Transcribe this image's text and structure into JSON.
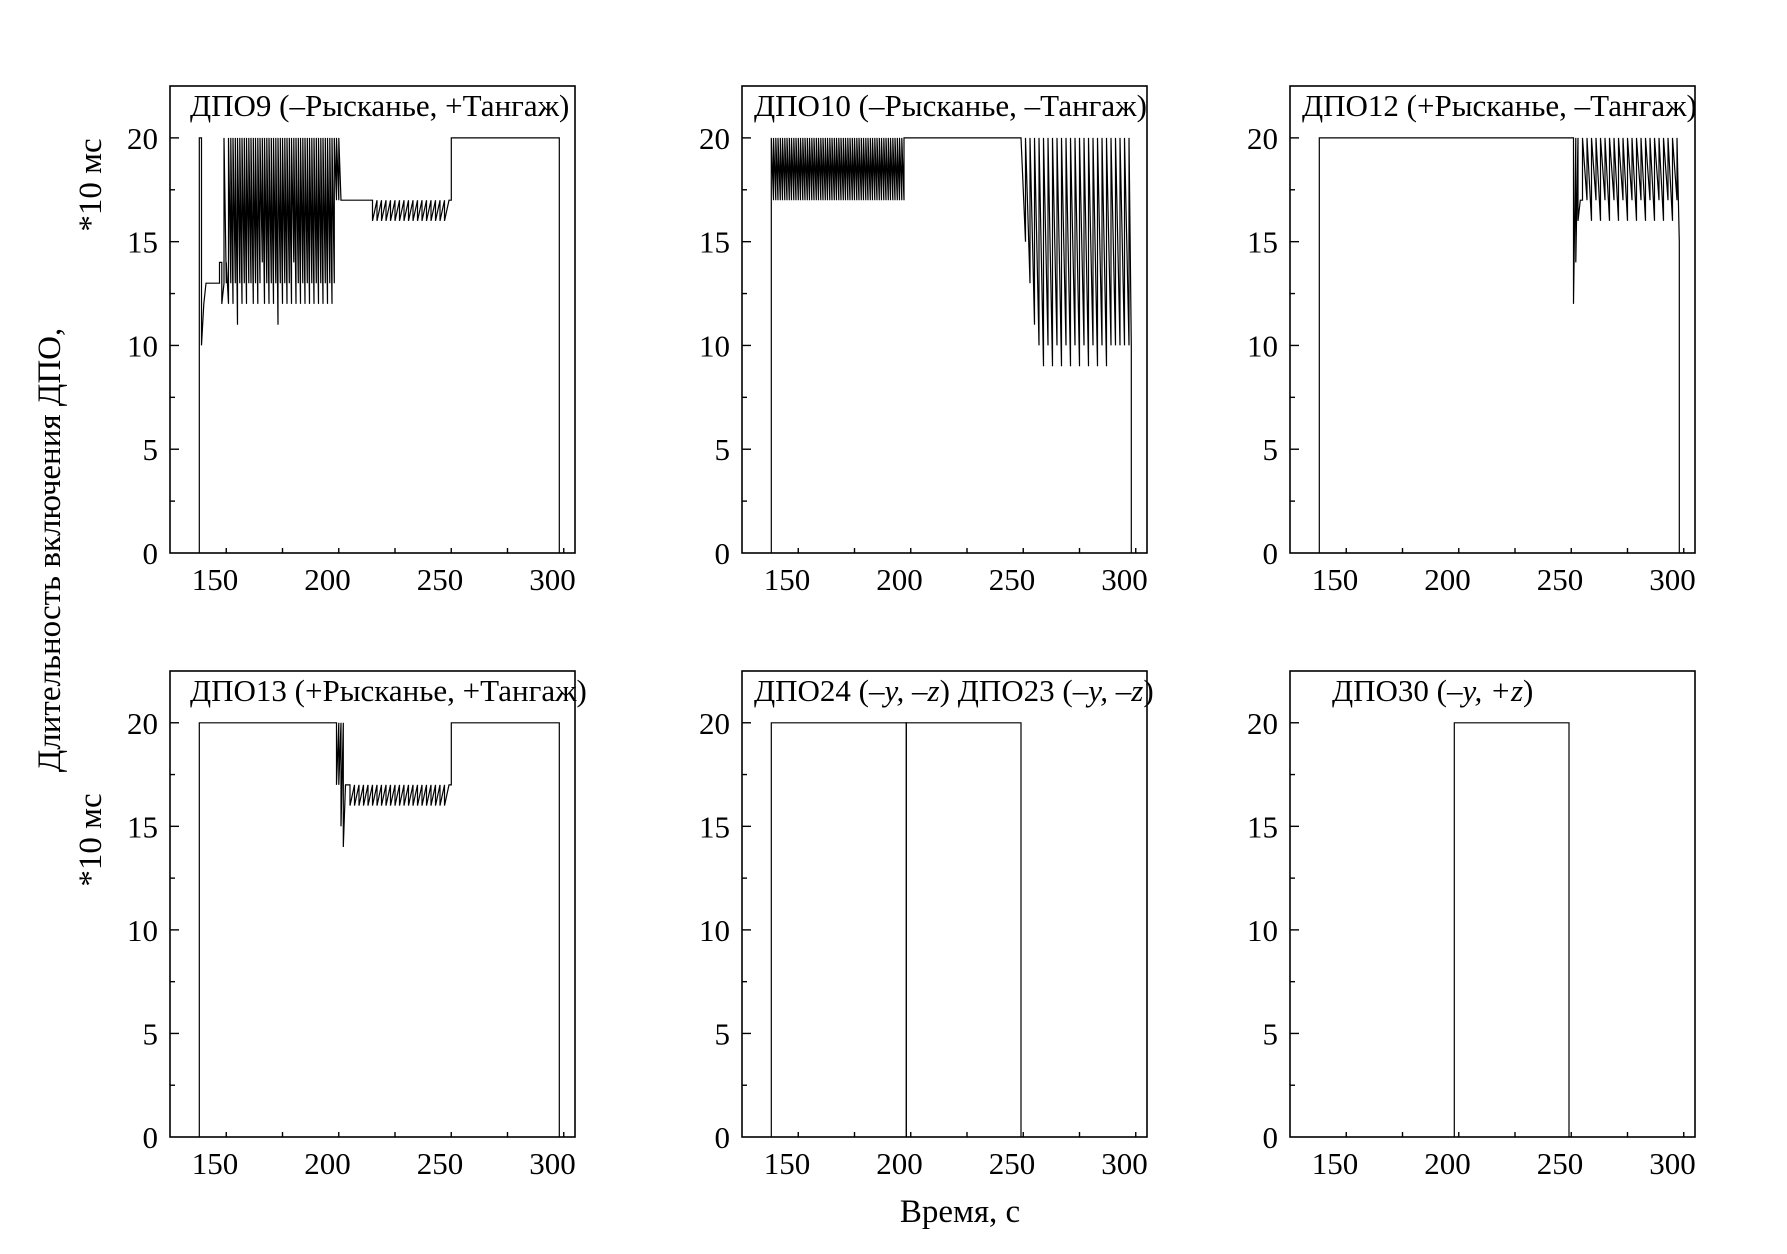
{
  "figure": {
    "ylabel_top": "Длительность включения ДПО,",
    "ylabel_bottom": "*10 мс",
    "xlabel": "Время, с"
  },
  "chart_data": [
    {
      "type": "line",
      "title": "ДПО9 (–Рысканье, +Тангаж)",
      "title_parts": [
        {
          "text": "ДПО9 (–Рысканье, +Тангаж)",
          "italic": false
        }
      ],
      "xlim": [
        130,
        310
      ],
      "ylim": [
        0,
        22.5
      ],
      "xticks": [
        150,
        200,
        250,
        300
      ],
      "yticks": [
        0,
        5,
        10,
        15,
        20
      ],
      "series": [
        {
          "x": [
            143,
            143,
            144,
            144,
            145,
            145,
            146,
            146,
            147,
            147,
            148,
            148,
            152,
            152,
            153,
            153,
            154,
            154,
            155,
            155,
            156,
            156,
            157,
            157,
            158,
            158,
            159,
            159,
            160,
            160,
            161,
            161,
            162,
            162,
            163,
            163,
            164,
            164,
            165,
            165,
            166,
            166,
            167,
            167,
            168,
            168,
            169,
            169,
            170,
            170,
            171,
            171,
            172,
            172,
            173,
            173,
            174,
            174,
            175,
            175,
            176,
            176,
            177,
            177,
            178,
            178,
            179,
            179,
            180,
            180,
            181,
            181,
            182,
            182,
            183,
            183,
            184,
            184,
            185,
            185,
            186,
            186,
            187,
            187,
            188,
            188,
            189,
            189,
            190,
            190,
            191,
            191,
            192,
            192,
            193,
            193,
            194,
            194,
            195,
            195,
            196,
            196,
            197,
            197,
            198,
            198,
            199,
            199,
            200,
            200,
            201,
            201,
            202,
            202,
            203,
            203,
            204,
            204,
            205,
            205,
            206,
            206,
            207,
            207,
            220,
            220,
            222,
            222,
            224,
            224,
            226,
            226,
            228,
            228,
            230,
            230,
            232,
            232,
            234,
            234,
            236,
            236,
            238,
            238,
            240,
            240,
            242,
            242,
            244,
            244,
            246,
            246,
            248,
            248,
            250,
            250,
            252,
            252,
            254,
            254,
            255,
            255,
            303,
            303
          ],
          "y": [
            0,
            20,
            20,
            10,
            12,
            12,
            13,
            13,
            13,
            13,
            13,
            13,
            13,
            14,
            14,
            12,
            13,
            20,
            13,
            14,
            12,
            20,
            13,
            20,
            12,
            20,
            13,
            20,
            11,
            20,
            13,
            20,
            12,
            20,
            13,
            20,
            12,
            20,
            13,
            20,
            13,
            20,
            12,
            20,
            13,
            20,
            12,
            20,
            13,
            20,
            14,
            20,
            12,
            20,
            13,
            20,
            12,
            20,
            13,
            20,
            12,
            20,
            13,
            20,
            11,
            20,
            13,
            20,
            12,
            20,
            13,
            20,
            12,
            20,
            13,
            20,
            12,
            20,
            14,
            20,
            12,
            20,
            13,
            20,
            12,
            20,
            13,
            20,
            12,
            20,
            13,
            20,
            12,
            20,
            13,
            20,
            12,
            20,
            13,
            20,
            12,
            20,
            13,
            20,
            12,
            20,
            13,
            20,
            12,
            20,
            13,
            20,
            12,
            20,
            13,
            20,
            17,
            20,
            17,
            20,
            17,
            17,
            17,
            17,
            17,
            16,
            17,
            16,
            17,
            16,
            17,
            16,
            17,
            16,
            17,
            16,
            17,
            16,
            17,
            16,
            17,
            16,
            17,
            16,
            17,
            16,
            17,
            16,
            17,
            16,
            17,
            16,
            17,
            16,
            17,
            16,
            17,
            16,
            17,
            17,
            17,
            20,
            20,
            0
          ]
        }
      ]
    },
    {
      "type": "line",
      "title": "ДПО10 (–Рысканье, –Тангаж)",
      "title_parts": [
        {
          "text": "ДПО10 (–Рысканье, –Тангаж)",
          "italic": false
        }
      ],
      "xlim": [
        130,
        310
      ],
      "ylim": [
        0,
        22.5
      ],
      "xticks": [
        150,
        200,
        250,
        300
      ],
      "yticks": [
        0,
        5,
        10,
        15,
        20
      ],
      "series": [
        {
          "x": [
            143,
            143,
            144,
            144,
            145,
            145,
            146,
            146,
            147,
            147,
            148,
            148,
            149,
            149,
            150,
            150,
            151,
            151,
            152,
            152,
            153,
            153,
            154,
            154,
            155,
            155,
            156,
            156,
            157,
            157,
            158,
            158,
            159,
            159,
            160,
            160,
            161,
            161,
            162,
            162,
            163,
            163,
            164,
            164,
            165,
            165,
            166,
            166,
            167,
            167,
            168,
            168,
            169,
            169,
            170,
            170,
            171,
            171,
            172,
            172,
            173,
            173,
            174,
            174,
            175,
            175,
            176,
            176,
            177,
            177,
            178,
            178,
            179,
            179,
            180,
            180,
            181,
            181,
            182,
            182,
            183,
            183,
            184,
            184,
            185,
            185,
            186,
            186,
            187,
            187,
            188,
            188,
            189,
            189,
            190,
            190,
            191,
            191,
            192,
            192,
            193,
            193,
            194,
            194,
            195,
            195,
            196,
            196,
            197,
            197,
            198,
            198,
            199,
            199,
            200,
            200,
            201,
            201,
            202,
            202,
            203,
            203,
            254,
            254,
            256,
            256,
            258,
            258,
            260,
            260,
            262,
            262,
            264,
            264,
            266,
            266,
            268,
            268,
            270,
            270,
            272,
            272,
            274,
            274,
            276,
            276,
            278,
            278,
            280,
            280,
            282,
            282,
            284,
            284,
            286,
            286,
            288,
            288,
            290,
            290,
            292,
            292,
            294,
            294,
            296,
            296,
            298,
            298,
            300,
            300,
            302,
            302,
            303,
            303
          ],
          "y": [
            0,
            20,
            17,
            20,
            17,
            20,
            17,
            20,
            17,
            20,
            17,
            20,
            17,
            20,
            17,
            20,
            17,
            20,
            17,
            20,
            17,
            20,
            17,
            20,
            17,
            20,
            17,
            20,
            17,
            20,
            17,
            20,
            17,
            20,
            17,
            20,
            17,
            20,
            17,
            20,
            17,
            20,
            17,
            20,
            17,
            20,
            17,
            20,
            17,
            20,
            17,
            20,
            17,
            20,
            17,
            20,
            17,
            20,
            17,
            20,
            17,
            20,
            17,
            20,
            17,
            20,
            17,
            20,
            17,
            20,
            17,
            20,
            17,
            20,
            17,
            20,
            17,
            20,
            17,
            20,
            17,
            20,
            17,
            20,
            17,
            20,
            17,
            20,
            17,
            20,
            17,
            20,
            17,
            20,
            17,
            20,
            17,
            20,
            17,
            20,
            17,
            20,
            17,
            20,
            17,
            20,
            17,
            20,
            17,
            20,
            17,
            20,
            17,
            20,
            17,
            20,
            17,
            20,
            17,
            20,
            20,
            20,
            20,
            20,
            15,
            20,
            13,
            20,
            11,
            20,
            10,
            20,
            9,
            20,
            10,
            20,
            9,
            20,
            10,
            20,
            9,
            20,
            10,
            20,
            9,
            20,
            10,
            20,
            9,
            20,
            10,
            20,
            9,
            20,
            10,
            20,
            9,
            20,
            10,
            20,
            9,
            20,
            10,
            20,
            10,
            20,
            10,
            20,
            10,
            20,
            10,
            20,
            10,
            0
          ]
        }
      ]
    },
    {
      "type": "line",
      "title": "ДПО12 (+Рысканье, –Тангаж)",
      "title_parts": [
        {
          "text": "ДПО12 (+Рысканье, –Тангаж)",
          "italic": false
        }
      ],
      "xlim": [
        130,
        310
      ],
      "ylim": [
        0,
        22.5
      ],
      "xticks": [
        150,
        200,
        250,
        300
      ],
      "yticks": [
        0,
        5,
        10,
        15,
        20
      ],
      "series": [
        {
          "x": [
            143,
            143,
            256,
            256,
            257,
            257,
            258,
            258,
            259,
            259,
            260,
            260,
            262,
            262,
            264,
            264,
            266,
            266,
            268,
            268,
            270,
            270,
            272,
            272,
            274,
            274,
            276,
            276,
            278,
            278,
            280,
            280,
            282,
            282,
            284,
            284,
            286,
            286,
            288,
            288,
            290,
            290,
            292,
            292,
            294,
            294,
            296,
            296,
            298,
            298,
            300,
            300,
            302,
            302,
            303,
            303
          ],
          "y": [
            0,
            20,
            20,
            12,
            20,
            14,
            20,
            16,
            17,
            17,
            17,
            20,
            17,
            20,
            16,
            20,
            17,
            20,
            16,
            20,
            17,
            20,
            16,
            20,
            17,
            20,
            16,
            20,
            17,
            20,
            16,
            20,
            17,
            20,
            16,
            20,
            17,
            20,
            16,
            20,
            17,
            20,
            16,
            20,
            17,
            20,
            16,
            20,
            17,
            20,
            16,
            20,
            17,
            20,
            15,
            0
          ]
        }
      ]
    },
    {
      "type": "line",
      "title": "ДПО13 (+Рысканье, +Тангаж)",
      "title_parts": [
        {
          "text": "ДПО13 (+Рысканье, +Тангаж)",
          "italic": false
        }
      ],
      "xlim": [
        130,
        310
      ],
      "ylim": [
        0,
        22.5
      ],
      "xticks": [
        150,
        200,
        250,
        300
      ],
      "yticks": [
        0,
        5,
        10,
        15,
        20
      ],
      "series": [
        {
          "x": [
            143,
            143,
            204,
            204,
            205,
            205,
            206,
            206,
            207,
            207,
            208,
            208,
            210,
            210,
            212,
            212,
            214,
            214,
            216,
            216,
            218,
            218,
            220,
            220,
            222,
            222,
            224,
            224,
            226,
            226,
            228,
            228,
            230,
            230,
            232,
            232,
            234,
            234,
            236,
            236,
            238,
            238,
            240,
            240,
            242,
            242,
            244,
            244,
            246,
            246,
            248,
            248,
            250,
            250,
            252,
            252,
            254,
            254,
            255,
            255,
            303,
            303
          ],
          "y": [
            0,
            20,
            20,
            17,
            20,
            17,
            20,
            15,
            20,
            14,
            17,
            17,
            17,
            16,
            17,
            16,
            17,
            16,
            17,
            16,
            17,
            16,
            17,
            16,
            17,
            16,
            17,
            16,
            17,
            16,
            17,
            16,
            17,
            16,
            17,
            16,
            17,
            16,
            17,
            16,
            17,
            16,
            17,
            16,
            17,
            16,
            17,
            16,
            17,
            16,
            17,
            16,
            17,
            16,
            17,
            16,
            17,
            17,
            17,
            20,
            20,
            0
          ]
        }
      ]
    },
    {
      "type": "line",
      "title": "ДПО24 (–y, –z) ДПО23 (–y, –z)",
      "title_parts": [
        {
          "text": "ДПО24 (",
          "italic": false
        },
        {
          "text": "–y, –z",
          "italic": true
        },
        {
          "text": ") ДПО23 (",
          "italic": false
        },
        {
          "text": "–y, –z",
          "italic": true
        },
        {
          "text": ")",
          "italic": false
        }
      ],
      "xlim": [
        130,
        310
      ],
      "ylim": [
        0,
        22.5
      ],
      "xticks": [
        150,
        200,
        250,
        300
      ],
      "yticks": [
        0,
        5,
        10,
        15,
        20
      ],
      "series": [
        {
          "x": [
            143,
            143,
            203,
            203
          ],
          "y": [
            0,
            20,
            20,
            0
          ]
        },
        {
          "x": [
            203,
            203,
            254,
            254
          ],
          "y": [
            0,
            20,
            20,
            0
          ]
        }
      ]
    },
    {
      "type": "line",
      "title": "ДПО30 (–y, +z)",
      "title_parts": [
        {
          "text": "ДПО30 (",
          "italic": false
        },
        {
          "text": "–y, +z",
          "italic": true
        },
        {
          "text": ")",
          "italic": false
        }
      ],
      "xlim": [
        130,
        310
      ],
      "ylim": [
        0,
        22.5
      ],
      "xticks": [
        150,
        200,
        250,
        300
      ],
      "yticks": [
        0,
        5,
        10,
        15,
        20
      ],
      "series": [
        {
          "x": [
            203,
            203,
            254,
            254
          ],
          "y": [
            0,
            20,
            20,
            0
          ]
        }
      ]
    }
  ]
}
